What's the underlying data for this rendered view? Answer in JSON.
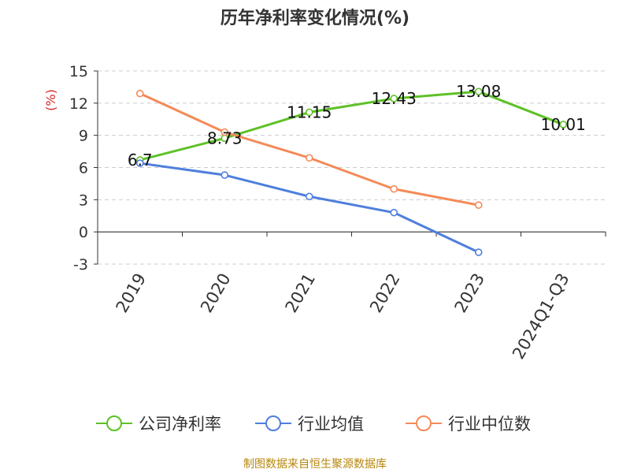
{
  "title": "历年净利率变化情况(%)",
  "footer": "制图数据来自恒生聚源数据库",
  "chart_data": {
    "type": "line",
    "categories": [
      "2019",
      "2020",
      "2021",
      "2022",
      "2023",
      "2024Q1-Q3"
    ],
    "ylabel": "(%)",
    "ylim": [
      -3,
      15
    ],
    "yticks": [
      -3,
      0,
      3,
      6,
      9,
      12,
      15
    ],
    "grid": true,
    "legend_position": "bottom",
    "series": [
      {
        "name": "公司净利率",
        "color": "#5ec127",
        "values": [
          6.7,
          8.73,
          11.15,
          12.43,
          13.08,
          10.01
        ],
        "labels": [
          "6.7",
          "8.73",
          "11.15",
          "12.43",
          "13.08",
          "10.01"
        ]
      },
      {
        "name": "行业均值",
        "color": "#4f7fdc",
        "values": [
          6.4,
          5.3,
          3.3,
          1.8,
          -1.9,
          null
        ]
      },
      {
        "name": "行业中位数",
        "color": "#f48a58",
        "values": [
          12.9,
          9.3,
          6.9,
          4.0,
          2.5,
          null
        ]
      }
    ]
  }
}
